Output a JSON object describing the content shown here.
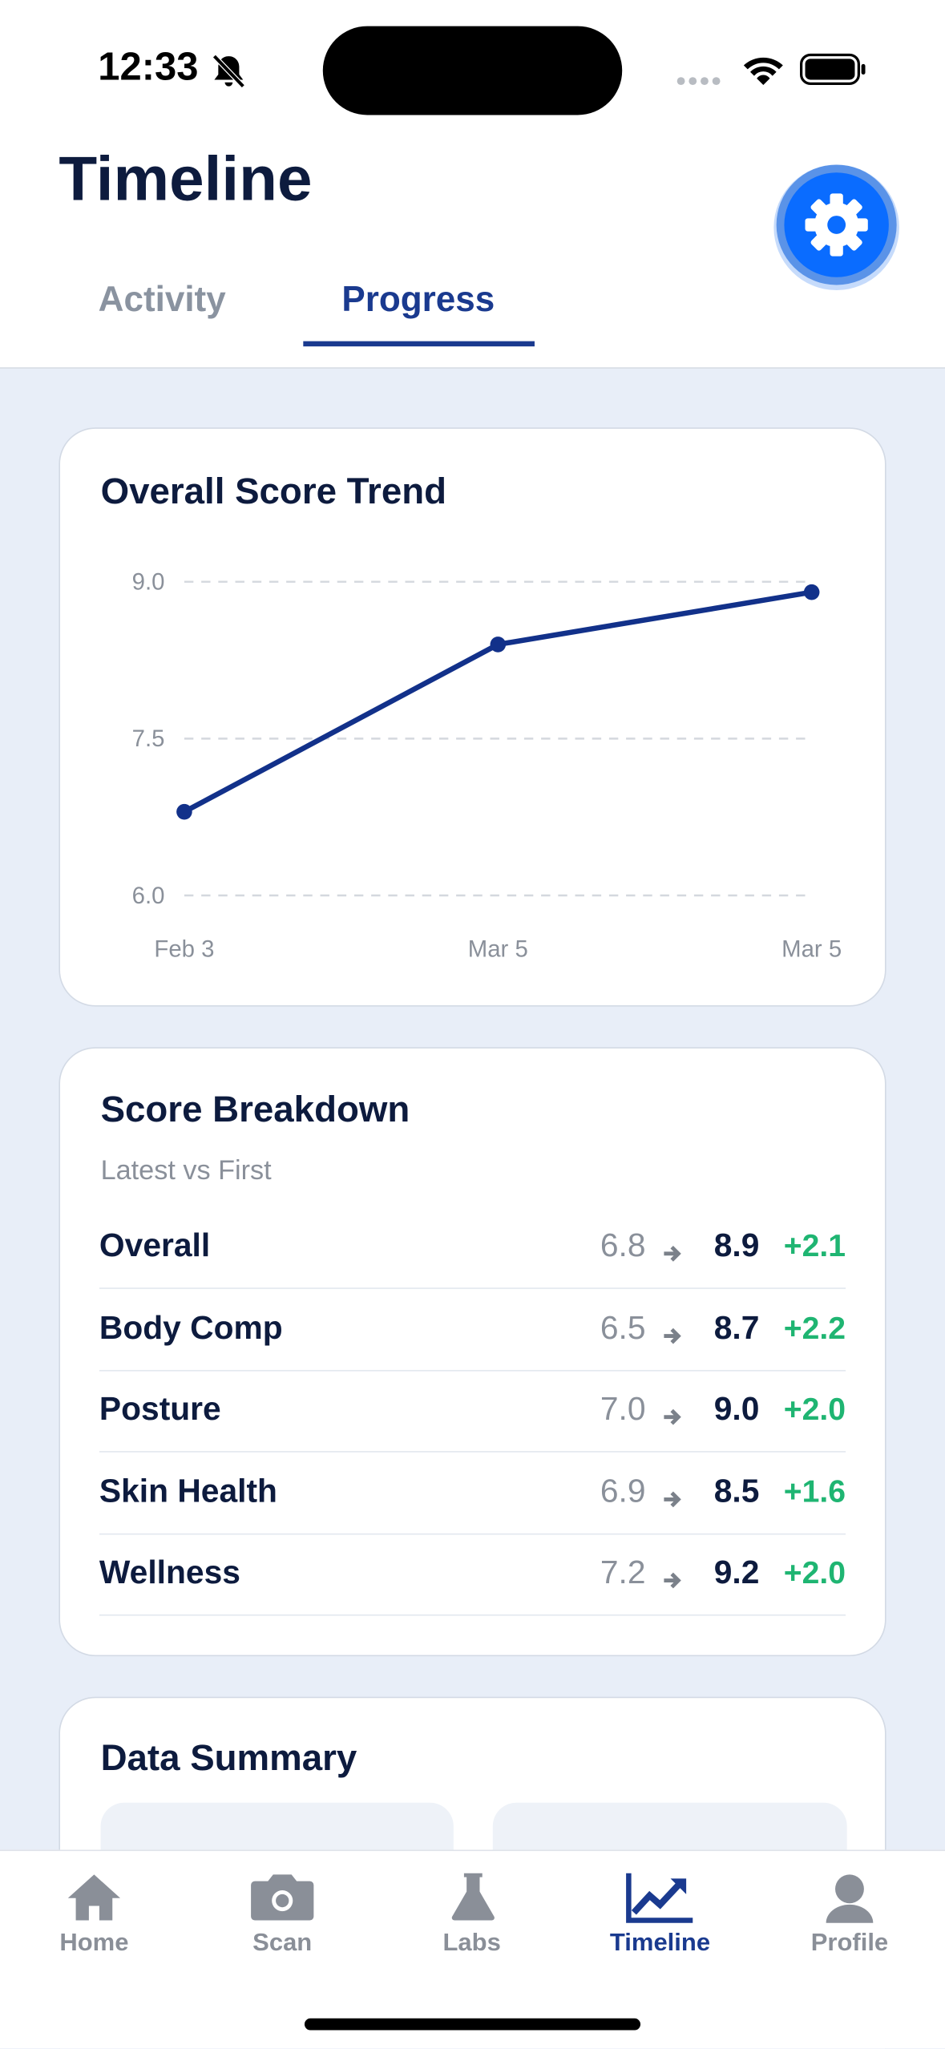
{
  "status_bar": {
    "time": "12:33"
  },
  "header": {
    "title": "Timeline"
  },
  "tabs": [
    "Activity",
    "Progress"
  ],
  "trend_card": {
    "chart_data": {
      "type": "line",
      "title": "Overall Score Trend",
      "categories": [
        "Feb 3",
        "Mar 5",
        "Mar 5"
      ],
      "series": [
        {
          "color": "#12318a",
          "values": [
            6.8,
            8.4,
            8.9
          ]
        }
      ],
      "ylim": [
        6,
        9
      ],
      "yticks": [
        {
          "value": 6,
          "label": "6.0"
        },
        {
          "value": 7.5,
          "label": "7.5"
        },
        {
          "value": 9,
          "label": "9.0"
        }
      ],
      "grid": true
    }
  },
  "breakdown": {
    "title": "Score Breakdown",
    "subtitle": "Latest vs First",
    "rows": [
      {
        "name": "Overall",
        "first": "6.8",
        "latest": "8.9",
        "change": "+2.1"
      },
      {
        "name": "Body Comp",
        "first": "6.5",
        "latest": "8.7",
        "change": "+2.2"
      },
      {
        "name": "Posture",
        "first": "7.0",
        "latest": "9.0",
        "change": "+2.0"
      },
      {
        "name": "Skin Health",
        "first": "6.9",
        "latest": "8.5",
        "change": "+1.6"
      },
      {
        "name": "Wellness",
        "first": "7.2",
        "latest": "9.2",
        "change": "+2.0"
      }
    ]
  },
  "summary": {
    "title": "Data Summary"
  },
  "nav": [
    "Home",
    "Scan",
    "Labs",
    "Timeline",
    "Profile"
  ]
}
